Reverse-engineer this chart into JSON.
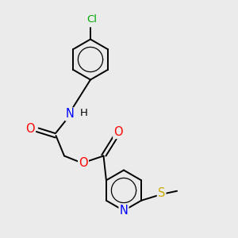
{
  "bg_color": "#ebebeb",
  "bond_color": "#000000",
  "atom_colors": {
    "Cl": "#00aa00",
    "N": "#0000ff",
    "O": "#ff0000",
    "S": "#ccaa00",
    "C": "#000000"
  },
  "bond_lw": 1.4,
  "font_size": 9.5,
  "figsize": [
    3.0,
    3.0
  ],
  "dpi": 100
}
